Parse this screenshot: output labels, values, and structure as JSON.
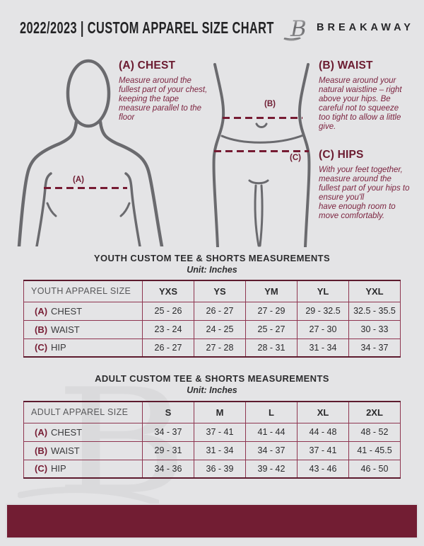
{
  "masthead": {
    "title": "2022/2023  |  CUSTOM APPAREL SIZE CHART",
    "brand": "BREAKAWAY"
  },
  "guide": {
    "chest": {
      "heading": "(A) CHEST",
      "body": "Measure around the fullest part of your chest, keeping the tape measure parallel to the floor",
      "marker": "(A)"
    },
    "waist": {
      "heading": "(B) WAIST",
      "body": "Measure around your natural waistline – right above your hips. Be careful not to squeeze too tight to allow a little give.",
      "marker": "(B)"
    },
    "hips": {
      "heading": "(C) HIPS",
      "body": "With your feet together, measure around the fullest part of your hips to ensure you'll\nhave enough room to move comfortably.",
      "marker": "(C)"
    }
  },
  "youth": {
    "title": "YOUTH CUSTOM TEE & SHORTS MEASUREMENTS",
    "unit": "Unit: Inches",
    "size_header": "YOUTH APPAREL SIZE",
    "columns": [
      "YXS",
      "YS",
      "YM",
      "YL",
      "YXL"
    ],
    "rows": [
      {
        "key": "(A)",
        "label": "CHEST",
        "values": [
          "25 - 26",
          "26 - 27",
          "27 - 29",
          "29 - 32.5",
          "32.5 - 35.5"
        ]
      },
      {
        "key": "(B)",
        "label": "WAIST",
        "values": [
          "23 - 24",
          "24 - 25",
          "25 - 27",
          "27 - 30",
          "30 - 33"
        ]
      },
      {
        "key": "(C)",
        "label": "HIP",
        "values": [
          "26 - 27",
          "27 - 28",
          "28 - 31",
          "31 - 34",
          "34 - 37"
        ]
      }
    ]
  },
  "adult": {
    "title": "ADULT CUSTOM TEE & SHORTS MEASUREMENTS",
    "unit": "Unit: Inches",
    "size_header": "ADULT APPAREL SIZE",
    "columns": [
      "S",
      "M",
      "L",
      "XL",
      "2XL"
    ],
    "rows": [
      {
        "key": "(A)",
        "label": "CHEST",
        "values": [
          "34 - 37",
          "37 - 41",
          "41 - 44",
          "44 - 48",
          "48 - 52"
        ]
      },
      {
        "key": "(B)",
        "label": "WAIST",
        "values": [
          "29 - 31",
          "31 - 34",
          "34 - 37",
          "37 - 41",
          "41 - 45.5"
        ]
      },
      {
        "key": "(C)",
        "label": "HIP",
        "values": [
          "34 - 36",
          "36 - 39",
          "39 - 42",
          "43 - 46",
          "46 - 50"
        ]
      }
    ]
  },
  "watermark": "B",
  "palette": {
    "maroon_bar": "#721d33",
    "table_line": "#8e3550",
    "accent_text": "#6e1c32",
    "background": "#e4e4e6",
    "figure_stroke": "#6a6a6e"
  }
}
